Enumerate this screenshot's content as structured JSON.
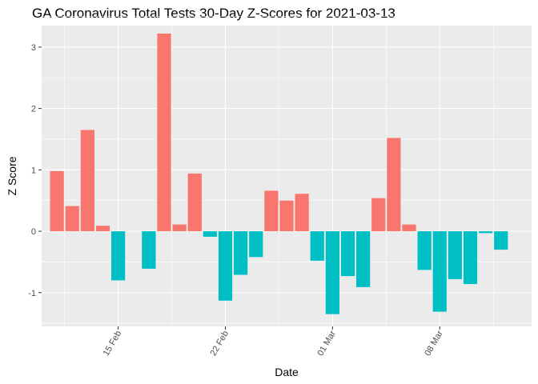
{
  "chart_data": {
    "type": "bar",
    "title": "GA Coronavirus Total Tests 30-Day Z-Scores for 2021-03-13",
    "xlabel": "Date",
    "ylabel": "Z Score",
    "x_ticks": [
      {
        "label": "15 Feb",
        "date": "2021-02-15"
      },
      {
        "label": "22 Feb",
        "date": "2021-02-22"
      },
      {
        "label": "01 Mar",
        "date": "2021-03-01"
      },
      {
        "label": "08 Mar",
        "date": "2021-03-08"
      }
    ],
    "y_ticks": [
      -1,
      0,
      1,
      2,
      3
    ],
    "ylim": [
      -1.55,
      3.35
    ],
    "xlim": [
      "2021-02-10",
      "2021-03-14"
    ],
    "grid": true,
    "legend": "none",
    "colors": {
      "positive": "#F8766D",
      "negative": "#00BFC4",
      "panel": "#EBEBEB",
      "grid": "#FFFFFF"
    },
    "x": [
      "2021-02-11",
      "2021-02-12",
      "2021-02-13",
      "2021-02-14",
      "2021-02-15",
      "2021-02-16",
      "2021-02-17",
      "2021-02-18",
      "2021-02-19",
      "2021-02-20",
      "2021-02-21",
      "2021-02-22",
      "2021-02-23",
      "2021-02-24",
      "2021-02-25",
      "2021-02-26",
      "2021-02-27",
      "2021-02-28",
      "2021-03-01",
      "2021-03-02",
      "2021-03-03",
      "2021-03-04",
      "2021-03-05",
      "2021-03-06",
      "2021-03-07",
      "2021-03-08",
      "2021-03-09",
      "2021-03-10",
      "2021-03-11",
      "2021-03-12"
    ],
    "values": [
      0.98,
      0.41,
      1.65,
      0.09,
      -0.8,
      0.0,
      -0.61,
      3.22,
      0.11,
      0.94,
      -0.09,
      -1.13,
      -0.71,
      -0.42,
      0.66,
      0.5,
      0.61,
      -0.48,
      -1.35,
      -0.73,
      -0.91,
      0.54,
      1.52,
      0.11,
      -0.63,
      -1.31,
      -0.78,
      -0.86,
      -0.03,
      -0.3
    ]
  }
}
